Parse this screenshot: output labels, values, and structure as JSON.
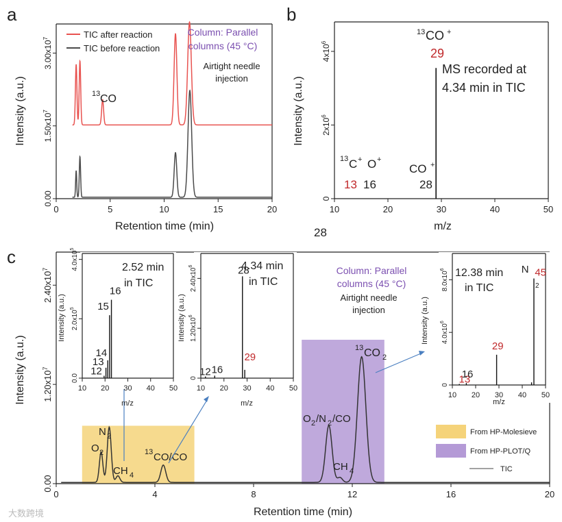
{
  "panel_letters": {
    "a": "a",
    "b": "b",
    "c": "c"
  },
  "colors": {
    "red": "#e8524f",
    "black": "#4a4a4a",
    "gold": "#f5d37a",
    "purple": "#b49ad6",
    "label_red": "#c0282a",
    "label_purple": "#7b4fb0"
  },
  "stray_text": "28",
  "watermark": "大数跨境",
  "chart_data": [
    {
      "id": "a",
      "type": "line",
      "xlabel": "Retention time (min)",
      "ylabel": "Intensity (a.u.)",
      "xlim": [
        0,
        20
      ],
      "ylim": [
        0,
        36000000
      ],
      "xticks": [
        "0",
        "5",
        "10",
        "15",
        "20"
      ],
      "yticks": [
        "0.00",
        "1.50x10",
        "3.00x10"
      ],
      "ytick_exp": "7",
      "legend": [
        "TIC after reaction",
        "TIC before reaction"
      ],
      "annotations": {
        "column_line1": "Column: Parallel",
        "column_line2": "columns (45 °C)",
        "needle_line1": "Airtight needle",
        "needle_line2": "injection",
        "co_sup": "13",
        "co": "CO"
      },
      "series": [
        {
          "name": "TIC after reaction",
          "baseline": 15200000,
          "peaks": [
            {
              "x": 1.85,
              "h": 12500000,
              "w": 0.07
            },
            {
              "x": 2.2,
              "h": 13200000,
              "w": 0.07
            },
            {
              "x": 4.3,
              "h": 5200000,
              "w": 0.09
            },
            {
              "x": 11.05,
              "h": 18800000,
              "w": 0.13
            },
            {
              "x": 12.35,
              "h": 21200000,
              "w": 0.17
            }
          ]
        },
        {
          "name": "TIC before reaction",
          "baseline": 300000,
          "peaks": [
            {
              "x": 1.85,
              "h": 5500000,
              "w": 0.05
            },
            {
              "x": 2.2,
              "h": 8400000,
              "w": 0.06
            },
            {
              "x": 11.05,
              "h": 9200000,
              "w": 0.12
            },
            {
              "x": 12.38,
              "h": 22000000,
              "w": 0.17
            }
          ]
        }
      ]
    },
    {
      "id": "b",
      "type": "bar",
      "xlabel": "m/z",
      "ylabel": "Intensity (a.u.)",
      "xlim": [
        10,
        50
      ],
      "ylim": [
        0,
        4800000
      ],
      "xticks": [
        "10",
        "20",
        "30",
        "40",
        "50"
      ],
      "yticks": [
        "0",
        "2x10",
        "4x10"
      ],
      "ytick_exp": "6",
      "bars": [
        {
          "x": 13,
          "y": 0
        },
        {
          "x": 16,
          "y": 0
        },
        {
          "x": 28,
          "y": 0
        },
        {
          "x": 29,
          "y": 3550000
        }
      ],
      "labels": {
        "c_sup": "13",
        "c": "C",
        "c_plus": "+",
        "o": "O",
        "o_plus": "+",
        "co": "CO",
        "co_plus": "+",
        "co13_sup": "13",
        "co13": "CO",
        "co13_plus": "+",
        "n13": "13",
        "n16": "16",
        "n28": "28",
        "n29": "29",
        "note_line1": "MS recorded at",
        "note_line2": "4.34 min in TIC"
      }
    },
    {
      "id": "c",
      "type": "line",
      "xlabel": "Retention time (min)",
      "ylabel": "Intensity (a.u.)",
      "xlim": [
        0,
        20
      ],
      "ylim": [
        0,
        28000000
      ],
      "xticks": [
        "0",
        "4",
        "8",
        "12",
        "16",
        "20"
      ],
      "yticks": [
        "0.00",
        "1.20x10",
        "2.40x10"
      ],
      "ytick_exp": "7",
      "regions": [
        {
          "name": "From HP-Molesieve",
          "x0": 1.05,
          "x1": 5.6,
          "top": 7000000
        },
        {
          "name": "From HP-PLOT/Q",
          "x0": 9.95,
          "x1": 13.3,
          "top": 17400000
        }
      ],
      "legend": [
        "From HP-Molesieve",
        "From HP-PLOT/Q",
        "TIC"
      ],
      "series": [
        {
          "name": "TIC",
          "baseline": 150000,
          "peaks": [
            {
              "x": 1.82,
              "h": 3700000,
              "w": 0.07
            },
            {
              "x": 2.15,
              "h": 6700000,
              "w": 0.08
            },
            {
              "x": 2.5,
              "h": 800000,
              "w": 0.08
            },
            {
              "x": 4.34,
              "h": 2100000,
              "w": 0.1
            },
            {
              "x": 11.05,
              "h": 6900000,
              "w": 0.13
            },
            {
              "x": 11.5,
              "h": 600000,
              "w": 0.1
            },
            {
              "x": 12.38,
              "h": 15200000,
              "w": 0.17
            }
          ]
        }
      ],
      "peak_labels": {
        "o2": "O",
        "o2_sub": "2",
        "n2": "N",
        "n2_sub": "2",
        "ch4": "CH",
        "ch4_sub": "4",
        "co_sup": "13",
        "co": "CO/CO",
        "onco_o": "O",
        "onco_o_sub": "2",
        "onco_n": "/N",
        "onco_n_sub": "2",
        "onco_co": "/CO",
        "ch4b": "CH",
        "ch4b_sub": "4",
        "co2_sup": "13",
        "co2": "CO",
        "co2_sub": "2"
      },
      "annotations": {
        "column_line1": "Column: Parallel",
        "column_line2": "columns (45 °C)",
        "needle_line1": "Airtight needle",
        "needle_line2": "injection"
      }
    },
    {
      "id": "c-inset-1",
      "type": "bar",
      "xlabel": "m/z",
      "ylabel": "Intensity (a.u.)",
      "xlim": [
        0,
        50
      ],
      "ylim": [
        0,
        4200000
      ],
      "xticks": [
        "10",
        "20",
        "30",
        "40",
        "50"
      ],
      "yticks": [
        "0.0",
        "2.0x10",
        "4.0x10"
      ],
      "ytick_exp": "5",
      "title_line1": "2.52 min",
      "title_line2": "in TIC",
      "bars": [
        {
          "x": 12,
          "y": 80000
        },
        {
          "x": 13,
          "y": 350000
        },
        {
          "x": 14,
          "y": 600000
        },
        {
          "x": 15,
          "y": 2120000
        },
        {
          "x": 16,
          "y": 2640000
        }
      ],
      "bar_labels": [
        "12",
        "13",
        "14",
        "15",
        "16"
      ]
    },
    {
      "id": "c-inset-2",
      "type": "bar",
      "xlabel": "m/z",
      "ylabel": "Intensity (a.u.)",
      "xlim": [
        10,
        50
      ],
      "ylim": [
        0,
        3000000
      ],
      "xticks": [
        "10",
        "20",
        "30",
        "40",
        "50"
      ],
      "yticks": [
        "0",
        "1.20x10",
        "2.40x10"
      ],
      "ytick_exp": "6",
      "title_line1": "4.34 min",
      "title_line2": "in TIC",
      "bars": [
        {
          "x": 12,
          "y": 40000
        },
        {
          "x": 16,
          "y": 60000
        },
        {
          "x": 28,
          "y": 2450000
        },
        {
          "x": 29,
          "y": 200000
        }
      ],
      "bar_labels": [
        "12",
        "16",
        "28",
        "29"
      ]
    },
    {
      "id": "c-inset-3",
      "type": "bar",
      "xlabel": "m/z",
      "ylabel": "Intensity (a.u.)",
      "xlim": [
        10,
        50
      ],
      "ylim": [
        0,
        10000000
      ],
      "xticks": [
        "10",
        "20",
        "30",
        "40",
        "50"
      ],
      "yticks": [
        "0",
        "4.0x10",
        "8.0x10"
      ],
      "ytick_exp": "6",
      "title_line1": "12.38 min",
      "title_line2": "in TIC",
      "bars": [
        {
          "x": 13,
          "y": 80000
        },
        {
          "x": 16,
          "y": 150000
        },
        {
          "x": 29,
          "y": 2300000
        },
        {
          "x": 44,
          "y": 200000
        },
        {
          "x": 45,
          "y": 8100000
        }
      ],
      "bar_labels": [
        "13",
        "16",
        "29",
        "N",
        "45"
      ],
      "n2_sub": "2"
    }
  ]
}
